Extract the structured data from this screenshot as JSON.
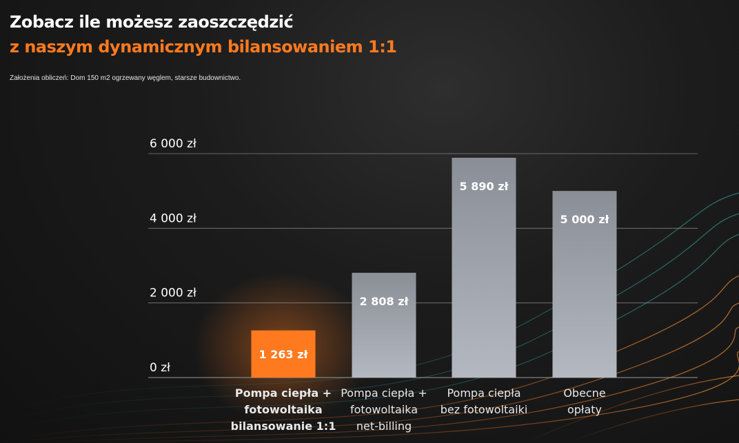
{
  "header": {
    "title_line1": "Zobacz ile możesz zaoszczędzić",
    "title_line2": "z naszym dynamicznym bilansowaniem 1:1",
    "assumptions": "Założenia obliczeń: Dom 150 m2 ogrzewany węglem, starsze budownictwo."
  },
  "colors": {
    "accent": "#ff7a1f",
    "bar_grey_top": "#8a8e96",
    "bar_grey_bottom": "#b4b8c0",
    "grid": "#9a9a9a"
  },
  "chart_data": {
    "type": "bar",
    "title": "",
    "xlabel": "",
    "ylabel": "",
    "ylim": [
      0,
      6000
    ],
    "yticks": [
      0,
      2000,
      4000,
      6000
    ],
    "ytick_labels": [
      "0 zł",
      "2 000 zł",
      "4 000 zł",
      "6 000 zł"
    ],
    "grid": true,
    "categories": [
      [
        "Pompa ciepła +",
        "fotowoltaika",
        "bilansowanie 1:1"
      ],
      [
        "Pompa ciepła +",
        "fotowoltaika",
        "net-billing"
      ],
      [
        "Pompa ciepła",
        "bez fotowoltaiki"
      ],
      [
        "Obecne",
        "opłaty"
      ]
    ],
    "values": [
      1263,
      2808,
      5890,
      5000
    ],
    "value_labels": [
      "1 263 zł",
      "2 808 zł",
      "5 890 zł",
      "5 000 zł"
    ],
    "highlight_index": 0
  }
}
